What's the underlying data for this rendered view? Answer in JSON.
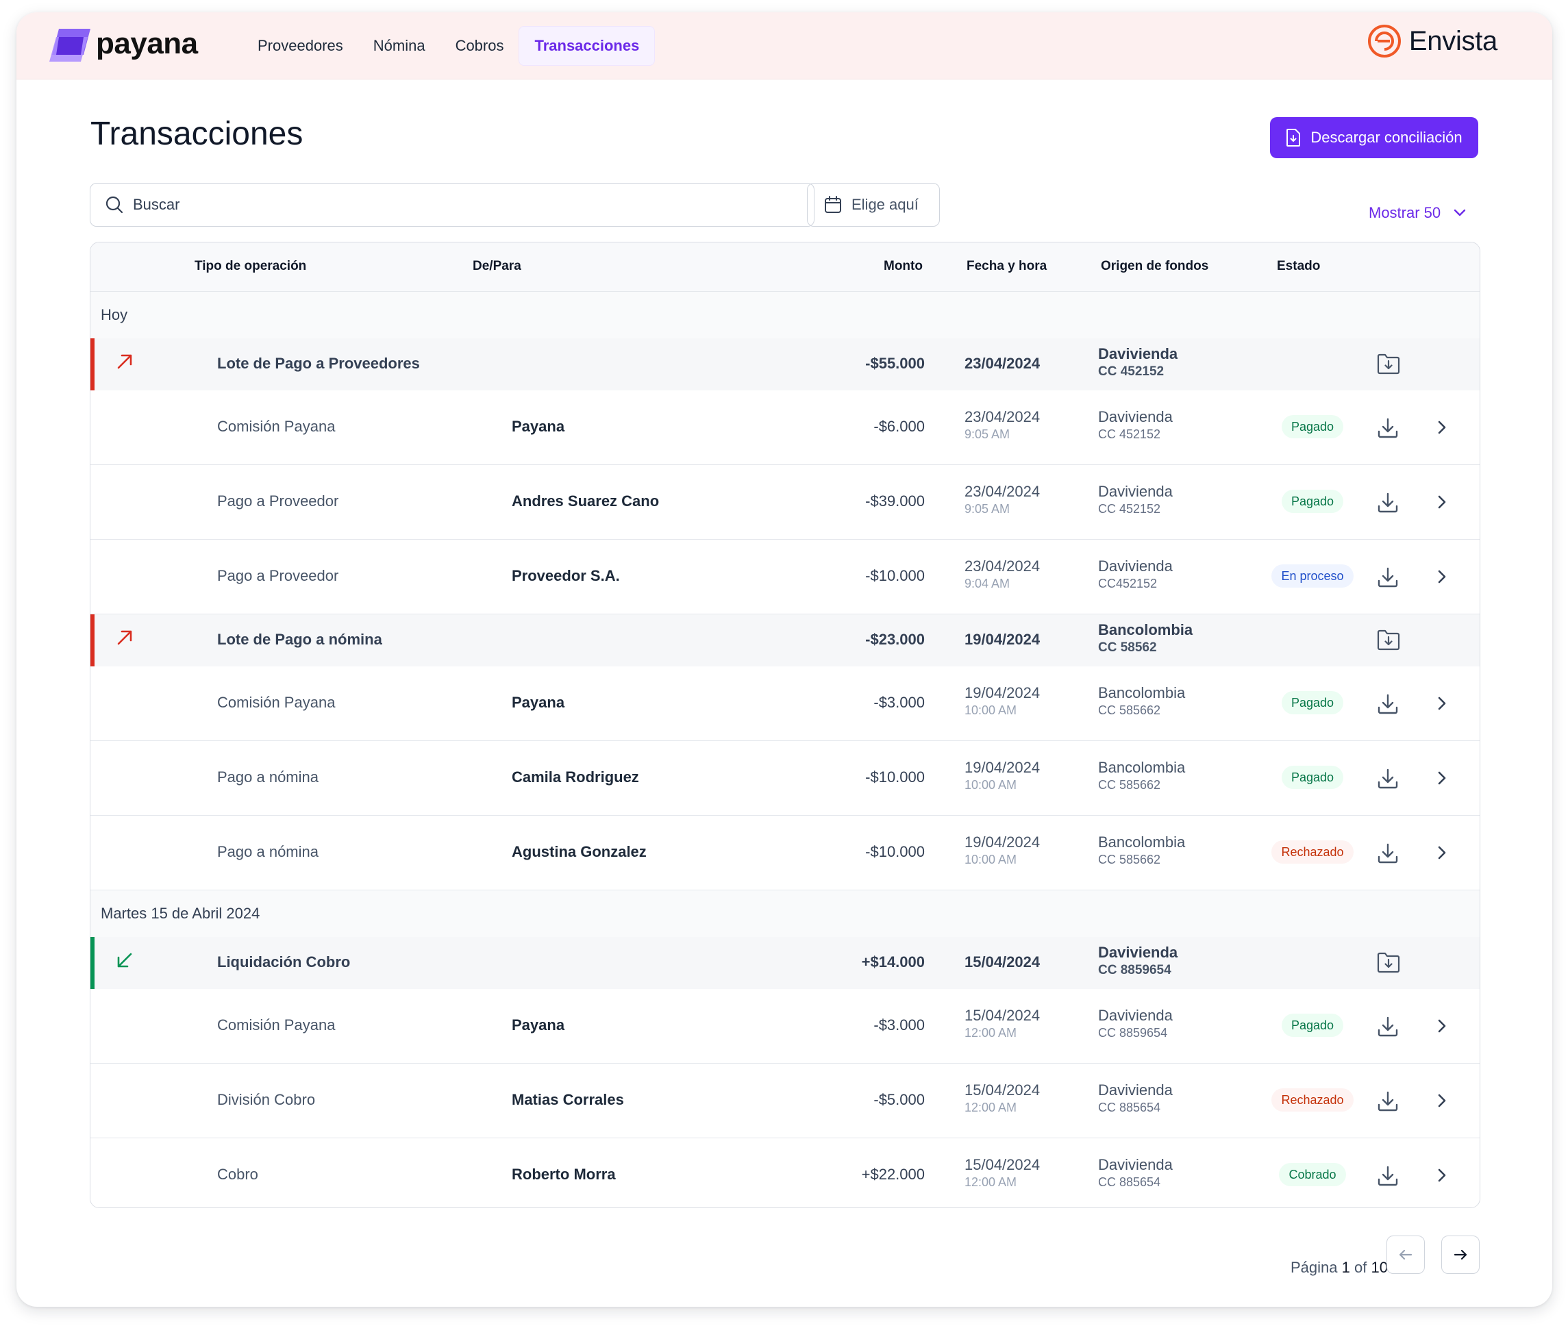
{
  "app": {
    "logo_text": "payana",
    "brand_text": "Envista"
  },
  "nav": [
    {
      "label": "Proveedores"
    },
    {
      "label": "Nómina"
    },
    {
      "label": "Cobros"
    },
    {
      "label": "Transacciones",
      "active": true
    }
  ],
  "page": {
    "title": "Transacciones",
    "download_label": "Descargar conciliación",
    "search_placeholder": "Buscar",
    "date_placeholder": "Elige aquí",
    "show_label": "Mostrar 50"
  },
  "columns": {
    "tipo": "Tipo de operación",
    "para": "De/Para",
    "monto": "Monto",
    "fecha": "Fecha y hora",
    "origen": "Origen de fondos",
    "estado": "Estado"
  },
  "sections": [
    {
      "label": "Hoy",
      "groups": [
        {
          "direction": "out",
          "tipo": "Lote de Pago a Proveedores",
          "monto": "-$55.000",
          "fecha": "23/04/2024",
          "banco": "Davivienda",
          "cuenta": "CC 452152",
          "rows": [
            {
              "tipo": "Comisión Payana",
              "para": "Payana",
              "monto": "-$6.000",
              "fecha": "23/04/2024",
              "hora": "9:05 AM",
              "banco": "Davivienda",
              "cuenta": "CC 452152",
              "estado": "Pagado"
            },
            {
              "tipo": "Pago a Proveedor",
              "para": "Andres Suarez Cano",
              "monto": "-$39.000",
              "fecha": "23/04/2024",
              "hora": "9:05 AM",
              "banco": "Davivienda",
              "cuenta": "CC 452152",
              "estado": "Pagado"
            },
            {
              "tipo": "Pago a Proveedor",
              "para": "Proveedor S.A.",
              "monto": "-$10.000",
              "fecha": "23/04/2024",
              "hora": "9:04 AM",
              "banco": "Davivienda",
              "cuenta": "CC452152",
              "estado": "En proceso"
            }
          ]
        },
        {
          "direction": "out",
          "tipo": "Lote de Pago a nómina",
          "monto": "-$23.000",
          "fecha": "19/04/2024",
          "banco": "Bancolombia",
          "cuenta": "CC 58562",
          "rows": [
            {
              "tipo": "Comisión Payana",
              "para": "Payana",
              "monto": "-$3.000",
              "fecha": "19/04/2024",
              "hora": "10:00 AM",
              "banco": "Bancolombia",
              "cuenta": "CC 585662",
              "estado": "Pagado"
            },
            {
              "tipo": "Pago a nómina",
              "para": "Camila Rodriguez",
              "monto": "-$10.000",
              "fecha": "19/04/2024",
              "hora": "10:00 AM",
              "banco": "Bancolombia",
              "cuenta": "CC 585662",
              "estado": "Pagado"
            },
            {
              "tipo": "Pago a nómina",
              "para": "Agustina Gonzalez",
              "monto": "-$10.000",
              "fecha": "19/04/2024",
              "hora": "10:00 AM",
              "banco": "Bancolombia",
              "cuenta": "CC 585662",
              "estado": "Rechazado"
            }
          ]
        }
      ]
    },
    {
      "label": "Martes 15 de Abril 2024",
      "groups": [
        {
          "direction": "in",
          "tipo": "Liquidación Cobro",
          "monto": "+$14.000",
          "fecha": "15/04/2024",
          "banco": "Davivienda",
          "cuenta": "CC 8859654",
          "rows": [
            {
              "tipo": "Comisión Payana",
              "para": "Payana",
              "monto": "-$3.000",
              "fecha": "15/04/2024",
              "hora": "12:00 AM",
              "banco": "Davivienda",
              "cuenta": "CC 8859654",
              "estado": "Pagado"
            },
            {
              "tipo": "División Cobro",
              "para": "Matias Corrales",
              "monto": "-$5.000",
              "fecha": "15/04/2024",
              "hora": "12:00 AM",
              "banco": "Davivienda",
              "cuenta": "CC 885654",
              "estado": "Rechazado"
            },
            {
              "tipo": "Cobro",
              "para": "Roberto Morra",
              "monto": "+$22.000",
              "fecha": "15/04/2024",
              "hora": "12:00 AM",
              "banco": "Davivienda",
              "cuenta": "CC 885654",
              "estado": "Cobrado"
            }
          ]
        }
      ]
    }
  ],
  "pagination": {
    "prefix": "Página",
    "current": "1",
    "of": "of",
    "total": "10"
  },
  "colors": {
    "accent": "#6b2cf5",
    "out": "#d92d20",
    "in": "#079455"
  }
}
